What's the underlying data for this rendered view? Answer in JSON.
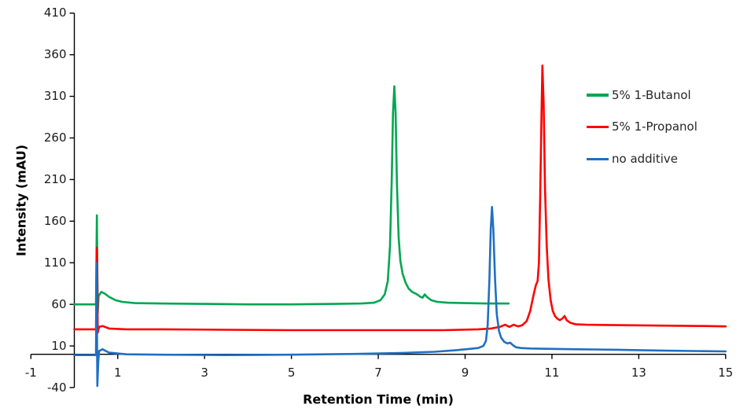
{
  "chart_data": {
    "type": "line",
    "title": "",
    "xlabel": "Retention Time (min)",
    "ylabel": "Intensity (mAU)",
    "xlim": [
      -1,
      15
    ],
    "ylim": [
      -40,
      410
    ],
    "x_ticks": [
      -1,
      1,
      3,
      5,
      7,
      9,
      11,
      13,
      15
    ],
    "y_ticks": [
      410,
      360,
      310,
      260,
      210,
      160,
      110,
      60,
      10,
      -40
    ],
    "grid": false,
    "legend_position": "right",
    "axis_color": "#000000",
    "axis_crosses": {
      "x_at": 0,
      "y_at": 0
    },
    "series": [
      {
        "name": "5% 1-Butanol",
        "color": "#00A651",
        "peak_retention_min": 7.37,
        "peak_intensity_mau": 322,
        "baseline_mau": 60,
        "points": [
          [
            0.0,
            60
          ],
          [
            0.3,
            60
          ],
          [
            0.48,
            60
          ],
          [
            0.5,
            60
          ],
          [
            0.52,
            167
          ],
          [
            0.53,
            100
          ],
          [
            0.54,
            50
          ],
          [
            0.56,
            70
          ],
          [
            0.62,
            75
          ],
          [
            0.7,
            73
          ],
          [
            0.8,
            69
          ],
          [
            0.95,
            65
          ],
          [
            1.1,
            63
          ],
          [
            1.4,
            61.5
          ],
          [
            2.0,
            61
          ],
          [
            3.0,
            60.5
          ],
          [
            4.0,
            60
          ],
          [
            5.0,
            60
          ],
          [
            6.0,
            60.5
          ],
          [
            6.6,
            61
          ],
          [
            6.9,
            62
          ],
          [
            7.05,
            65
          ],
          [
            7.15,
            72
          ],
          [
            7.22,
            88
          ],
          [
            7.27,
            130
          ],
          [
            7.31,
            210
          ],
          [
            7.34,
            290
          ],
          [
            7.37,
            322
          ],
          [
            7.4,
            290
          ],
          [
            7.43,
            205
          ],
          [
            7.47,
            140
          ],
          [
            7.51,
            112
          ],
          [
            7.56,
            97
          ],
          [
            7.63,
            86
          ],
          [
            7.7,
            79
          ],
          [
            7.78,
            75
          ],
          [
            7.86,
            73
          ],
          [
            7.92,
            71
          ],
          [
            7.97,
            69
          ],
          [
            8.02,
            68
          ],
          [
            8.07,
            72
          ],
          [
            8.12,
            69
          ],
          [
            8.22,
            65
          ],
          [
            8.36,
            63
          ],
          [
            8.6,
            62
          ],
          [
            9.0,
            61.5
          ],
          [
            9.5,
            61
          ],
          [
            10.0,
            61
          ]
        ]
      },
      {
        "name": "5% 1-Propanol",
        "color": "#FF0000",
        "peak_retention_min": 10.78,
        "peak_intensity_mau": 347,
        "baseline_mau": 30,
        "points": [
          [
            0.0,
            30
          ],
          [
            0.3,
            30
          ],
          [
            0.48,
            30
          ],
          [
            0.5,
            30
          ],
          [
            0.52,
            128
          ],
          [
            0.53,
            80
          ],
          [
            0.54,
            26
          ],
          [
            0.57,
            33
          ],
          [
            0.65,
            34
          ],
          [
            0.8,
            31
          ],
          [
            1.2,
            30
          ],
          [
            2.0,
            30
          ],
          [
            3.5,
            29.5
          ],
          [
            5.0,
            29
          ],
          [
            7.0,
            29
          ],
          [
            8.5,
            29
          ],
          [
            9.3,
            30
          ],
          [
            9.6,
            31
          ],
          [
            9.8,
            33
          ],
          [
            9.92,
            35.5
          ],
          [
            10.02,
            33
          ],
          [
            10.12,
            35.5
          ],
          [
            10.22,
            33.5
          ],
          [
            10.32,
            35
          ],
          [
            10.42,
            40
          ],
          [
            10.5,
            52
          ],
          [
            10.58,
            72
          ],
          [
            10.63,
            83
          ],
          [
            10.67,
            88
          ],
          [
            10.7,
            110
          ],
          [
            10.73,
            190
          ],
          [
            10.76,
            290
          ],
          [
            10.78,
            347
          ],
          [
            10.81,
            300
          ],
          [
            10.84,
            200
          ],
          [
            10.88,
            130
          ],
          [
            10.92,
            90
          ],
          [
            10.97,
            65
          ],
          [
            11.02,
            52
          ],
          [
            11.07,
            46
          ],
          [
            11.12,
            43
          ],
          [
            11.18,
            41
          ],
          [
            11.24,
            43
          ],
          [
            11.29,
            46
          ],
          [
            11.34,
            41
          ],
          [
            11.42,
            38
          ],
          [
            11.55,
            36
          ],
          [
            11.8,
            35.5
          ],
          [
            12.5,
            35
          ],
          [
            13.5,
            34.5
          ],
          [
            14.5,
            34
          ],
          [
            15.0,
            33.5
          ]
        ]
      },
      {
        "name": "no additive",
        "color": "#1F6FC5",
        "peak_retention_min": 9.62,
        "peak_intensity_mau": 177,
        "baseline_mau": 0,
        "points": [
          [
            0.0,
            -1
          ],
          [
            0.3,
            -1
          ],
          [
            0.48,
            -1
          ],
          [
            0.5,
            -1
          ],
          [
            0.51,
            110
          ],
          [
            0.53,
            -38
          ],
          [
            0.55,
            -10
          ],
          [
            0.57,
            4
          ],
          [
            0.65,
            6
          ],
          [
            0.8,
            2
          ],
          [
            1.2,
            0
          ],
          [
            2.0,
            -0.5
          ],
          [
            3.5,
            -1
          ],
          [
            5.0,
            -0.5
          ],
          [
            6.5,
            0.5
          ],
          [
            7.5,
            1.5
          ],
          [
            8.3,
            3
          ],
          [
            8.8,
            5
          ],
          [
            9.1,
            6.5
          ],
          [
            9.3,
            7.5
          ],
          [
            9.42,
            10
          ],
          [
            9.48,
            16
          ],
          [
            9.52,
            35
          ],
          [
            9.56,
            90
          ],
          [
            9.59,
            150
          ],
          [
            9.62,
            177
          ],
          [
            9.65,
            150
          ],
          [
            9.69,
            90
          ],
          [
            9.73,
            48
          ],
          [
            9.78,
            28
          ],
          [
            9.83,
            20
          ],
          [
            9.9,
            15
          ],
          [
            9.98,
            13
          ],
          [
            10.04,
            14
          ],
          [
            10.1,
            11
          ],
          [
            10.17,
            8.5
          ],
          [
            10.28,
            7.5
          ],
          [
            10.5,
            7
          ],
          [
            11.0,
            6.5
          ],
          [
            11.6,
            6
          ],
          [
            12.5,
            5.5
          ],
          [
            13.5,
            4.5
          ],
          [
            14.5,
            3.8
          ],
          [
            15.0,
            3.5
          ]
        ]
      }
    ]
  }
}
